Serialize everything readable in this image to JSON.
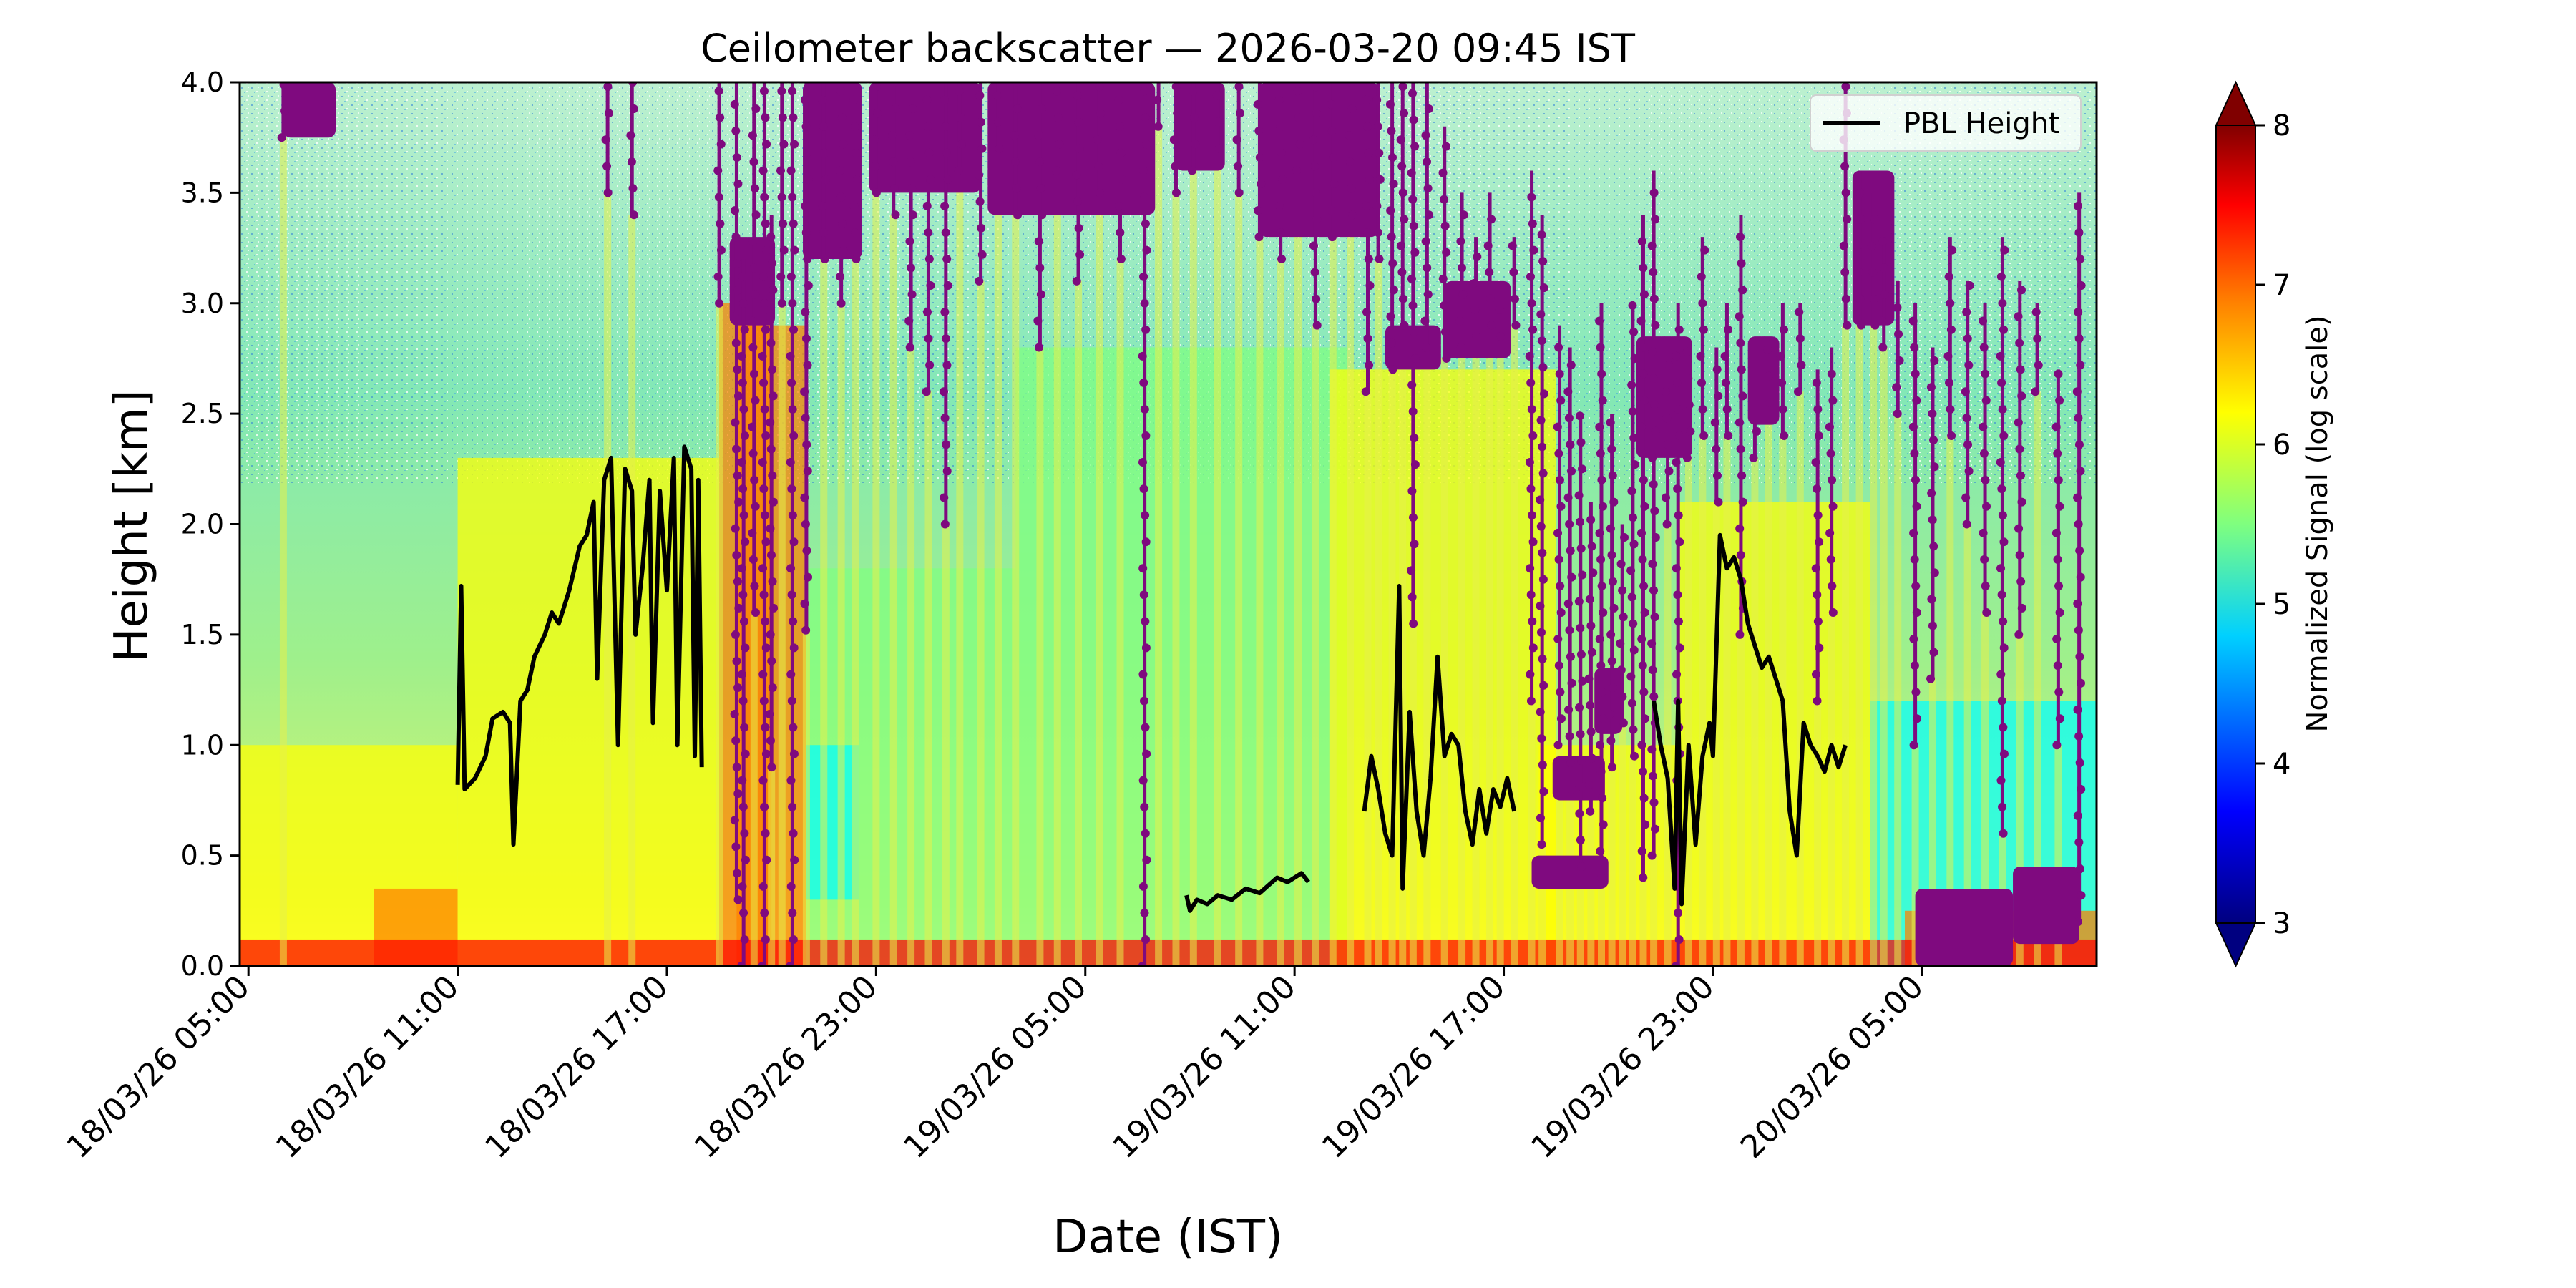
{
  "chart_data": {
    "type": "heatmap",
    "title": "Ceilometer backscatter — 2026-03-20 09:45 IST",
    "xlabel": "Date (IST)",
    "ylabel": "Height [km]",
    "x_ticks": [
      {
        "t": 0,
        "label": "18/03/26 05:00"
      },
      {
        "t": 6,
        "label": "18/03/26 11:00"
      },
      {
        "t": 12,
        "label": "18/03/26 17:00"
      },
      {
        "t": 18,
        "label": "18/03/26 23:00"
      },
      {
        "t": 24,
        "label": "19/03/26 05:00"
      },
      {
        "t": 30,
        "label": "19/03/26 11:00"
      },
      {
        "t": 36,
        "label": "19/03/26 17:00"
      },
      {
        "t": 42,
        "label": "19/03/26 23:00"
      },
      {
        "t": 48,
        "label": "20/03/26 05:00"
      }
    ],
    "x_range_label": [
      "18/03/26 04:45",
      "20/03/26 09:45"
    ],
    "ylim": [
      0.0,
      4.0
    ],
    "y_ticks": [
      "0.0",
      "0.5",
      "1.0",
      "1.5",
      "2.0",
      "2.5",
      "3.0",
      "3.5",
      "4.0"
    ],
    "colorbar": {
      "label": "Normalized Signal (log scale)",
      "range": [
        3,
        8
      ],
      "ticks": [
        "3",
        "4",
        "5",
        "6",
        "7",
        "8"
      ],
      "colormap": "jet",
      "extend": "both",
      "colors": [
        "#000080",
        "#0000ff",
        "#00ffff",
        "#7fff7f",
        "#ffff00",
        "#ff7f00",
        "#ff0000",
        "#800000"
      ]
    },
    "legend": {
      "placement": "top-right",
      "entries": [
        {
          "name": "PBL Height",
          "color": "#000000"
        }
      ]
    },
    "cloud_base_color": "#7f0a7f",
    "series": [
      {
        "name": "PBL Height",
        "color": "#000000",
        "segments": [
          [
            [
              6.0,
              0.82
            ],
            [
              6.1,
              1.72
            ],
            [
              6.2,
              0.8
            ],
            [
              6.5,
              0.85
            ],
            [
              6.8,
              0.95
            ],
            [
              7.0,
              1.12
            ],
            [
              7.3,
              1.15
            ],
            [
              7.5,
              1.1
            ],
            [
              7.6,
              0.55
            ],
            [
              7.8,
              1.2
            ],
            [
              8.0,
              1.25
            ],
            [
              8.2,
              1.4
            ],
            [
              8.5,
              1.5
            ],
            [
              8.7,
              1.6
            ],
            [
              8.9,
              1.55
            ],
            [
              9.2,
              1.7
            ],
            [
              9.5,
              1.9
            ],
            [
              9.7,
              1.95
            ],
            [
              9.9,
              2.1
            ],
            [
              10.0,
              1.3
            ],
            [
              10.2,
              2.2
            ],
            [
              10.4,
              2.3
            ],
            [
              10.6,
              1.0
            ],
            [
              10.8,
              2.25
            ],
            [
              11.0,
              2.15
            ],
            [
              11.1,
              1.5
            ],
            [
              11.3,
              1.8
            ],
            [
              11.5,
              2.2
            ],
            [
              11.6,
              1.1
            ],
            [
              11.8,
              2.15
            ],
            [
              12.0,
              1.7
            ],
            [
              12.2,
              2.3
            ],
            [
              12.3,
              1.0
            ],
            [
              12.5,
              2.35
            ],
            [
              12.7,
              2.25
            ],
            [
              12.8,
              0.95
            ],
            [
              12.9,
              2.2
            ],
            [
              13.0,
              0.9
            ]
          ],
          [
            [
              26.9,
              0.32
            ],
            [
              27.0,
              0.25
            ],
            [
              27.2,
              0.3
            ],
            [
              27.5,
              0.28
            ],
            [
              27.8,
              0.32
            ],
            [
              28.2,
              0.3
            ],
            [
              28.6,
              0.35
            ],
            [
              29.0,
              0.33
            ],
            [
              29.5,
              0.4
            ],
            [
              29.8,
              0.38
            ],
            [
              30.2,
              0.42
            ],
            [
              30.4,
              0.38
            ]
          ],
          [
            [
              32.0,
              0.7
            ],
            [
              32.2,
              0.95
            ],
            [
              32.4,
              0.8
            ],
            [
              32.6,
              0.6
            ],
            [
              32.8,
              0.5
            ],
            [
              33.0,
              1.72
            ],
            [
              33.1,
              0.35
            ],
            [
              33.3,
              1.15
            ],
            [
              33.5,
              0.7
            ],
            [
              33.7,
              0.5
            ],
            [
              33.9,
              0.85
            ],
            [
              34.1,
              1.4
            ],
            [
              34.3,
              0.95
            ],
            [
              34.5,
              1.05
            ],
            [
              34.7,
              1.0
            ],
            [
              34.9,
              0.7
            ],
            [
              35.1,
              0.55
            ],
            [
              35.3,
              0.8
            ],
            [
              35.5,
              0.6
            ],
            [
              35.7,
              0.8
            ],
            [
              35.9,
              0.72
            ],
            [
              36.1,
              0.85
            ],
            [
              36.3,
              0.7
            ]
          ],
          [
            [
              40.3,
              1.2
            ],
            [
              40.5,
              1.0
            ],
            [
              40.7,
              0.85
            ],
            [
              40.9,
              0.35
            ],
            [
              41.0,
              1.2
            ],
            [
              41.1,
              0.28
            ],
            [
              41.3,
              1.0
            ],
            [
              41.5,
              0.55
            ],
            [
              41.7,
              0.95
            ],
            [
              41.9,
              1.1
            ],
            [
              42.0,
              0.95
            ],
            [
              42.2,
              1.95
            ],
            [
              42.4,
              1.8
            ],
            [
              42.6,
              1.85
            ],
            [
              42.8,
              1.75
            ],
            [
              43.0,
              1.55
            ],
            [
              43.2,
              1.45
            ],
            [
              43.4,
              1.35
            ],
            [
              43.6,
              1.4
            ],
            [
              43.8,
              1.3
            ],
            [
              44.0,
              1.2
            ],
            [
              44.2,
              0.7
            ],
            [
              44.4,
              0.5
            ],
            [
              44.6,
              1.1
            ],
            [
              44.8,
              1.0
            ],
            [
              45.0,
              0.95
            ],
            [
              45.2,
              0.88
            ],
            [
              45.4,
              1.0
            ],
            [
              45.6,
              0.9
            ],
            [
              45.8,
              1.0
            ]
          ]
        ]
      }
    ],
    "cloud_base_curtains": [
      [
        1.0,
        4.0,
        3.75
      ],
      [
        10.3,
        4.0,
        3.5
      ],
      [
        11.0,
        4.0,
        3.4
      ],
      [
        13.5,
        4.0,
        3.0
      ],
      [
        14.0,
        4.0,
        0.3
      ],
      [
        14.2,
        3.2,
        0.0
      ],
      [
        14.5,
        4.0,
        1.6
      ],
      [
        14.8,
        4.0,
        0.0
      ],
      [
        15.0,
        3.4,
        0.9
      ],
      [
        15.3,
        4.0,
        3.0
      ],
      [
        15.6,
        4.0,
        0.0
      ],
      [
        16.0,
        4.0,
        1.52
      ],
      [
        16.5,
        4.0,
        3.2
      ],
      [
        17.0,
        4.0,
        3.0
      ],
      [
        17.4,
        4.0,
        3.2
      ],
      [
        18.0,
        4.0,
        3.5
      ],
      [
        18.5,
        4.0,
        3.4
      ],
      [
        19.0,
        4.0,
        2.8
      ],
      [
        19.5,
        4.0,
        2.6
      ],
      [
        20.0,
        4.0,
        2.0
      ],
      [
        20.4,
        4.0,
        3.6
      ],
      [
        21.0,
        4.0,
        3.1
      ],
      [
        21.5,
        4.0,
        3.7
      ],
      [
        22.0,
        4.0,
        3.4
      ],
      [
        22.7,
        4.0,
        2.8
      ],
      [
        23.2,
        4.0,
        3.6
      ],
      [
        23.8,
        4.0,
        3.1
      ],
      [
        24.4,
        4.0,
        3.5
      ],
      [
        25.0,
        4.0,
        3.2
      ],
      [
        25.7,
        4.0,
        0.0
      ],
      [
        26.1,
        4.0,
        3.8
      ],
      [
        26.6,
        4.0,
        3.5
      ],
      [
        27.1,
        4.0,
        3.6
      ],
      [
        27.8,
        4.0,
        3.7
      ],
      [
        28.4,
        4.0,
        3.5
      ],
      [
        29.0,
        4.0,
        3.3
      ],
      [
        29.6,
        4.0,
        3.2
      ],
      [
        30.1,
        4.0,
        3.6
      ],
      [
        30.6,
        4.0,
        2.9
      ],
      [
        31.1,
        4.0,
        3.3
      ],
      [
        31.6,
        4.0,
        3.4
      ],
      [
        32.1,
        4.0,
        2.6
      ],
      [
        32.4,
        4.0,
        3.2
      ],
      [
        32.8,
        4.0,
        2.7
      ],
      [
        33.1,
        4.0,
        2.9
      ],
      [
        33.4,
        4.0,
        1.55
      ],
      [
        33.8,
        4.0,
        2.8
      ],
      [
        34.3,
        3.8,
        2.75
      ],
      [
        34.8,
        3.5,
        2.8
      ],
      [
        35.2,
        3.3,
        2.85
      ],
      [
        35.6,
        3.5,
        2.9
      ],
      [
        35.9,
        3.0,
        2.85
      ],
      [
        36.3,
        3.3,
        2.9
      ],
      [
        36.8,
        3.6,
        1.2
      ],
      [
        37.1,
        3.4,
        0.55
      ],
      [
        37.6,
        2.9,
        1.0
      ],
      [
        37.9,
        2.8,
        0.8
      ],
      [
        38.2,
        2.5,
        0.45
      ],
      [
        38.5,
        2.1,
        0.7
      ],
      [
        38.8,
        3.0,
        0.4
      ],
      [
        39.1,
        2.5,
        0.9
      ],
      [
        39.4,
        2.0,
        1.1
      ],
      [
        39.7,
        3.0,
        0.95
      ],
      [
        40.0,
        3.4,
        0.4
      ],
      [
        40.3,
        3.6,
        0.5
      ],
      [
        40.7,
        2.8,
        2.0
      ],
      [
        41.0,
        3.0,
        0.0
      ],
      [
        41.3,
        2.8,
        2.3
      ],
      [
        41.7,
        3.3,
        2.4
      ],
      [
        42.1,
        2.8,
        2.1
      ],
      [
        42.4,
        3.0,
        2.4
      ],
      [
        42.8,
        3.4,
        1.5
      ],
      [
        43.2,
        2.5,
        2.3
      ],
      [
        43.6,
        2.8,
        2.55
      ],
      [
        44.0,
        3.0,
        2.4
      ],
      [
        44.5,
        3.0,
        2.6
      ],
      [
        45.0,
        2.7,
        1.2
      ],
      [
        45.4,
        2.8,
        1.6
      ],
      [
        45.8,
        4.0,
        2.9
      ],
      [
        46.2,
        3.6,
        2.9
      ],
      [
        46.6,
        3.5,
        2.9
      ],
      [
        46.9,
        3.3,
        2.8
      ],
      [
        47.3,
        3.1,
        2.5
      ],
      [
        47.8,
        3.0,
        1.0
      ],
      [
        48.3,
        2.8,
        1.3
      ],
      [
        48.8,
        3.3,
        2.4
      ],
      [
        49.3,
        3.1,
        2.0
      ],
      [
        49.8,
        3.0,
        1.6
      ],
      [
        50.3,
        3.3,
        0.6
      ],
      [
        50.8,
        3.1,
        1.5
      ],
      [
        51.3,
        3.0,
        2.6
      ],
      [
        51.9,
        2.7,
        1.0
      ],
      [
        52.5,
        3.5,
        0.2
      ]
    ],
    "cloud_base_blobs": [
      {
        "t0": 1.0,
        "t1": 2.5,
        "top": 4.0,
        "bottom": 3.75
      },
      {
        "t0": 13.8,
        "t1": 15.1,
        "top": 3.3,
        "bottom": 2.9
      },
      {
        "t0": 15.9,
        "t1": 17.6,
        "top": 4.0,
        "bottom": 3.2
      },
      {
        "t0": 17.8,
        "t1": 21.0,
        "top": 4.0,
        "bottom": 3.5
      },
      {
        "t0": 21.2,
        "t1": 26.0,
        "top": 4.0,
        "bottom": 3.4
      },
      {
        "t0": 26.6,
        "t1": 28.0,
        "top": 4.0,
        "bottom": 3.6
      },
      {
        "t0": 29.0,
        "t1": 32.4,
        "top": 4.0,
        "bottom": 3.3
      },
      {
        "t0": 32.6,
        "t1": 34.2,
        "top": 2.9,
        "bottom": 2.7
      },
      {
        "t0": 34.3,
        "t1": 36.2,
        "top": 3.1,
        "bottom": 2.75
      },
      {
        "t0": 36.8,
        "t1": 39.0,
        "top": 0.5,
        "bottom": 0.35
      },
      {
        "t0": 37.4,
        "t1": 38.9,
        "top": 0.95,
        "bottom": 0.75
      },
      {
        "t0": 38.6,
        "t1": 39.4,
        "top": 1.35,
        "bottom": 1.05
      },
      {
        "t0": 39.8,
        "t1": 41.4,
        "top": 2.85,
        "bottom": 2.3
      },
      {
        "t0": 43.0,
        "t1": 43.9,
        "top": 2.85,
        "bottom": 2.45
      },
      {
        "t0": 46.0,
        "t1": 47.2,
        "top": 3.6,
        "bottom": 2.9
      },
      {
        "t0": 47.8,
        "t1": 50.6,
        "top": 0.35,
        "bottom": 0.0
      },
      {
        "t0": 50.6,
        "t1": 52.5,
        "top": 0.45,
        "bottom": 0.1
      }
    ],
    "signal_regions": [
      {
        "t0": -0.5,
        "t1": 6.0,
        "band": [
          0.0,
          1.0
        ],
        "level": 6.2
      },
      {
        "t0": 3.6,
        "t1": 6.0,
        "band": [
          0.0,
          0.35
        ],
        "level": 6.8
      },
      {
        "t0": 6.0,
        "t1": 13.5,
        "band": [
          0.0,
          2.3
        ],
        "level": 6.1
      },
      {
        "t0": 13.5,
        "t1": 15.0,
        "band": [
          0.0,
          3.0
        ],
        "level": 6.3
      },
      {
        "t0": 14.0,
        "t1": 16.0,
        "band": [
          0.0,
          2.9
        ],
        "level": 6.9
      },
      {
        "t0": 16.0,
        "t1": 22.0,
        "band": [
          0.0,
          1.8
        ],
        "level": 5.2
      },
      {
        "t0": 16.0,
        "t1": 17.5,
        "band": [
          0.3,
          1.0
        ],
        "level": 4.7
      },
      {
        "t0": 22.0,
        "t1": 31.5,
        "band": [
          0.0,
          2.8
        ],
        "level": 5.4
      },
      {
        "t0": 31.0,
        "t1": 37.5,
        "band": [
          0.0,
          2.7
        ],
        "level": 6.0
      },
      {
        "t0": 37.0,
        "t1": 41.0,
        "band": [
          0.0,
          1.0
        ],
        "level": 6.1
      },
      {
        "t0": 41.0,
        "t1": 46.5,
        "band": [
          0.0,
          2.1
        ],
        "level": 5.8
      },
      {
        "t0": 46.5,
        "t1": 53.0,
        "band": [
          0.0,
          1.2
        ],
        "level": 4.3
      },
      {
        "t0": 47.5,
        "t1": 53.0,
        "band": [
          0.0,
          0.25
        ],
        "level": 6.9
      },
      {
        "t0": -0.5,
        "t1": 53.0,
        "band": [
          0.0,
          0.12
        ],
        "level": 7.0
      }
    ]
  }
}
